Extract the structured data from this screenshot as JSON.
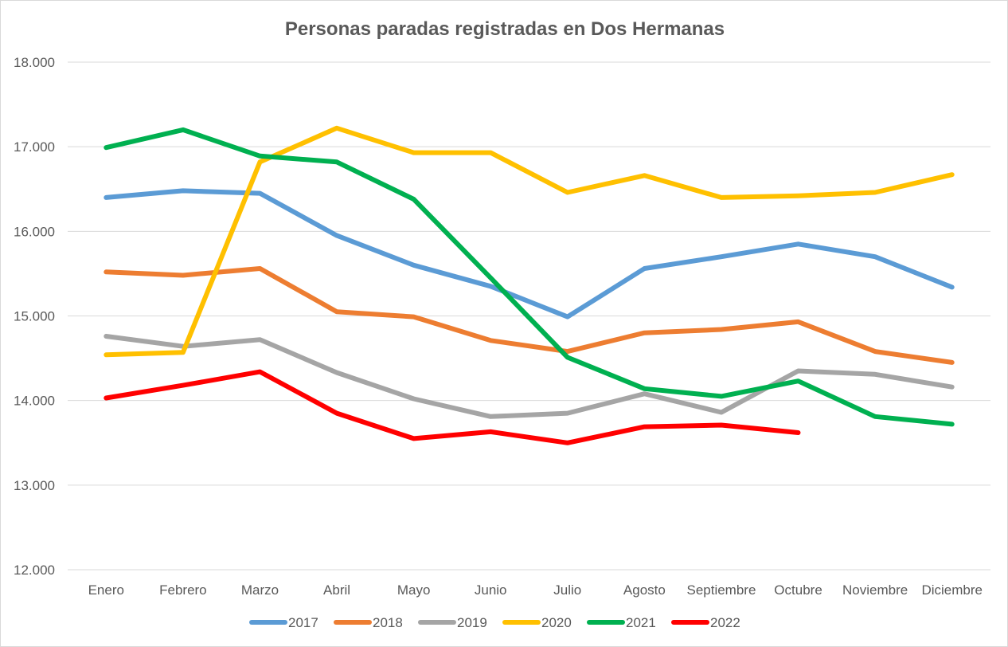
{
  "chart_data": {
    "type": "line",
    "title": "Personas paradas registradas en Dos Hermanas",
    "xlabel": "",
    "ylabel": "",
    "categories": [
      "Enero",
      "Febrero",
      "Marzo",
      "Abril",
      "Mayo",
      "Junio",
      "Julio",
      "Agosto",
      "Septiembre",
      "Octubre",
      "Noviembre",
      "Diciembre"
    ],
    "ylim": [
      12000,
      18000
    ],
    "y_ticks": [
      {
        "value": 12000,
        "label": "12.000"
      },
      {
        "value": 13000,
        "label": "13.000"
      },
      {
        "value": 14000,
        "label": "14.000"
      },
      {
        "value": 15000,
        "label": "15.000"
      },
      {
        "value": 16000,
        "label": "16.000"
      },
      {
        "value": 17000,
        "label": "17.000"
      },
      {
        "value": 18000,
        "label": "18.000"
      }
    ],
    "grid": true,
    "legend_position": "bottom",
    "series": [
      {
        "name": "2017",
        "color": "#5b9bd5",
        "values": [
          16400,
          16480,
          16450,
          15950,
          15600,
          15350,
          14990,
          15560,
          15700,
          15850,
          15700,
          15340
        ]
      },
      {
        "name": "2018",
        "color": "#ed7d31",
        "values": [
          15520,
          15480,
          15560,
          15050,
          14990,
          14710,
          14580,
          14800,
          14840,
          14930,
          14580,
          14450
        ]
      },
      {
        "name": "2019",
        "color": "#a5a5a5",
        "values": [
          14760,
          14640,
          14720,
          14330,
          14020,
          13810,
          13850,
          14080,
          13860,
          14350,
          14310,
          14160
        ]
      },
      {
        "name": "2020",
        "color": "#ffc000",
        "values": [
          14540,
          14570,
          16820,
          17220,
          16930,
          16930,
          16460,
          16660,
          16400,
          16420,
          16460,
          16670
        ]
      },
      {
        "name": "2021",
        "color": "#00b050",
        "values": [
          16990,
          17200,
          16890,
          16820,
          16380,
          15450,
          14510,
          14140,
          14050,
          14230,
          13810,
          13720
        ]
      },
      {
        "name": "2022",
        "color": "#ff0000",
        "values": [
          14030,
          14180,
          14340,
          13850,
          13550,
          13630,
          13500,
          13690,
          13710,
          13620,
          null,
          null
        ]
      }
    ]
  }
}
